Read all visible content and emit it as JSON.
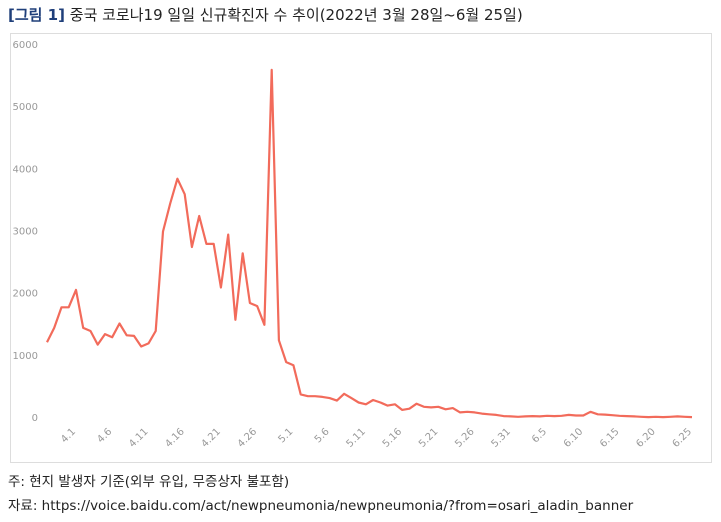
{
  "chart_data": {
    "type": "line",
    "figure_label": "[그림 1]",
    "title": "중국 코로나19 일일 신규확진자 수 추이(2022년 3월 28일~6월 25일)",
    "note": "주: 현지 발생자 기준(외부 유입, 무증상자 불포함)",
    "source": "자료: https://voice.baidu.com/act/newpneumonia/newpneumonia/?from=osari_aladin_banner",
    "categories": [
      null,
      null,
      null,
      null,
      "4.1",
      null,
      null,
      null,
      null,
      "4.6",
      null,
      null,
      null,
      null,
      "4.11",
      null,
      null,
      null,
      null,
      "4.16",
      null,
      null,
      null,
      null,
      "4.21",
      null,
      null,
      null,
      null,
      "4.26",
      null,
      null,
      null,
      null,
      "5.1",
      null,
      null,
      null,
      null,
      "5.6",
      null,
      null,
      null,
      null,
      "5.11",
      null,
      null,
      null,
      null,
      "5.16",
      null,
      null,
      null,
      null,
      "5.21",
      null,
      null,
      null,
      null,
      "5.26",
      null,
      null,
      null,
      null,
      "5.31",
      null,
      null,
      null,
      null,
      "6.5",
      null,
      null,
      null,
      null,
      "6.10",
      null,
      null,
      null,
      null,
      "6.15",
      null,
      null,
      null,
      null,
      "6.20",
      null,
      null,
      null,
      null,
      "6.25"
    ],
    "series": [
      {
        "name": "신규확진자",
        "color": "#f26b5b",
        "values": [
          1220,
          1450,
          1780,
          1780,
          2060,
          1450,
          1400,
          1180,
          1350,
          1300,
          1520,
          1330,
          1320,
          1150,
          1200,
          1400,
          3000,
          3450,
          3850,
          3600,
          2750,
          3250,
          2800,
          2800,
          2100,
          2950,
          1580,
          2650,
          1850,
          1800,
          1500,
          5600,
          1250,
          900,
          850,
          380,
          350,
          350,
          340,
          320,
          280,
          390,
          320,
          250,
          220,
          290,
          250,
          200,
          220,
          130,
          150,
          230,
          180,
          170,
          180,
          140,
          160,
          90,
          100,
          90,
          70,
          60,
          50,
          30,
          25,
          20,
          25,
          30,
          25,
          35,
          30,
          35,
          50,
          40,
          40,
          100,
          60,
          55,
          45,
          35,
          30,
          25,
          20,
          15,
          20,
          15,
          20,
          25,
          20,
          15
        ]
      }
    ],
    "ylim": [
      0,
      6000
    ],
    "yticks": [
      0,
      1000,
      2000,
      3000,
      4000,
      5000,
      6000
    ],
    "grid": false
  }
}
